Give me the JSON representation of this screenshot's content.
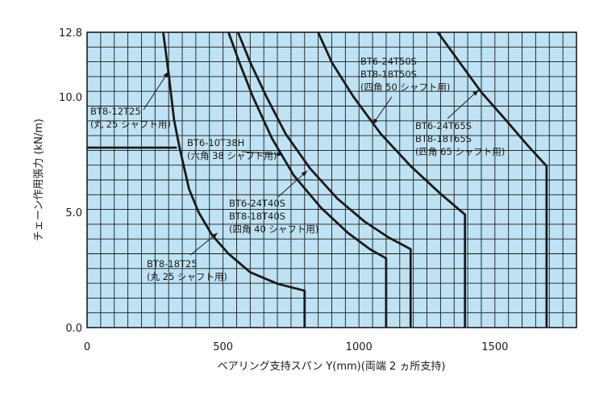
{
  "chart_data": {
    "type": "line",
    "title": "",
    "xlabel": "ベアリング支持スパン Y(mm)(両端 2 ヵ所支持)",
    "ylabel": "チェーン作用張力 (kN/m)",
    "xlim": [
      0,
      1800
    ],
    "ylim": [
      0,
      12.8
    ],
    "xticks": [
      0,
      500,
      1000,
      1500
    ],
    "xtick_labels": [
      "0",
      "500",
      "1000",
      "1500"
    ],
    "yticks": [
      0,
      5,
      10,
      12.8
    ],
    "ytick_labels": [
      "0.0",
      "5.0",
      "10.0",
      "12.8"
    ],
    "grid": true,
    "background": "#bfe3f5",
    "series": [
      {
        "name": "BT8-12T25 (丸 25 シャフト用)",
        "points": [
          [
            0,
            7.8
          ],
          [
            330,
            7.8
          ]
        ]
      },
      {
        "name": "BT8-18T25 (丸 25 シャフト用)",
        "points": [
          [
            280,
            12.8
          ],
          [
            300,
            11.0
          ],
          [
            320,
            9.0
          ],
          [
            340,
            7.8
          ],
          [
            375,
            6.0
          ],
          [
            410,
            5.0
          ],
          [
            460,
            4.0
          ],
          [
            520,
            3.2
          ],
          [
            600,
            2.4
          ],
          [
            700,
            1.9
          ],
          [
            800,
            1.6
          ],
          [
            800,
            0
          ]
        ]
      },
      {
        "name": "BT6-10T38H (六角 38 シャフト用)",
        "points": [
          [
            520,
            12.8
          ],
          [
            560,
            11.5
          ],
          [
            610,
            10.0
          ],
          [
            680,
            8.2
          ],
          [
            760,
            6.6
          ],
          [
            860,
            5.2
          ],
          [
            960,
            4.1
          ],
          [
            1040,
            3.4
          ],
          [
            1100,
            3.0
          ],
          [
            1100,
            0
          ]
        ]
      },
      {
        "name": "BT6-24T40S / BT8-18T40S (四角 40 シャフト用)",
        "points": [
          [
            555,
            12.8
          ],
          [
            600,
            11.5
          ],
          [
            660,
            10.0
          ],
          [
            730,
            8.4
          ],
          [
            820,
            6.9
          ],
          [
            920,
            5.6
          ],
          [
            1020,
            4.6
          ],
          [
            1110,
            3.9
          ],
          [
            1190,
            3.4
          ],
          [
            1190,
            0
          ]
        ]
      },
      {
        "name": "BT6-24T50S / BT8-18T50S (四角 50 シャフト用)",
        "points": [
          [
            850,
            12.8
          ],
          [
            900,
            11.5
          ],
          [
            980,
            10.0
          ],
          [
            1080,
            8.4
          ],
          [
            1190,
            7.0
          ],
          [
            1300,
            5.8
          ],
          [
            1390,
            4.9
          ],
          [
            1390,
            0
          ]
        ]
      },
      {
        "name": "BT6-24T65S / BT8-18T65S (四角 65 シャフト用)",
        "points": [
          [
            1290,
            12.8
          ],
          [
            1370,
            11.5
          ],
          [
            1450,
            10.2
          ],
          [
            1540,
            9.0
          ],
          [
            1620,
            7.9
          ],
          [
            1690,
            7.0
          ],
          [
            1690,
            0
          ]
        ]
      }
    ],
    "annotations": [
      {
        "lines": [
          "BT8-12T25",
          "(丸 25 シャフト用)"
        ]
      },
      {
        "lines": [
          "BT6-10T38H",
          "(六角 38 シャフト用)"
        ]
      },
      {
        "lines": [
          "BT6-24T40S",
          "BT8-18T40S",
          "(四角 40 シャフト用)"
        ]
      },
      {
        "lines": [
          "BT8-18T25",
          "(丸 25 シャフト用)"
        ]
      },
      {
        "lines": [
          "BT6-24T50S",
          "BT8-18T50S",
          "(四角 50 シャフト用)"
        ]
      },
      {
        "lines": [
          "BT6-24T65S",
          "BT8-18T65S",
          "(四角 65 シャフト用)"
        ]
      }
    ]
  }
}
